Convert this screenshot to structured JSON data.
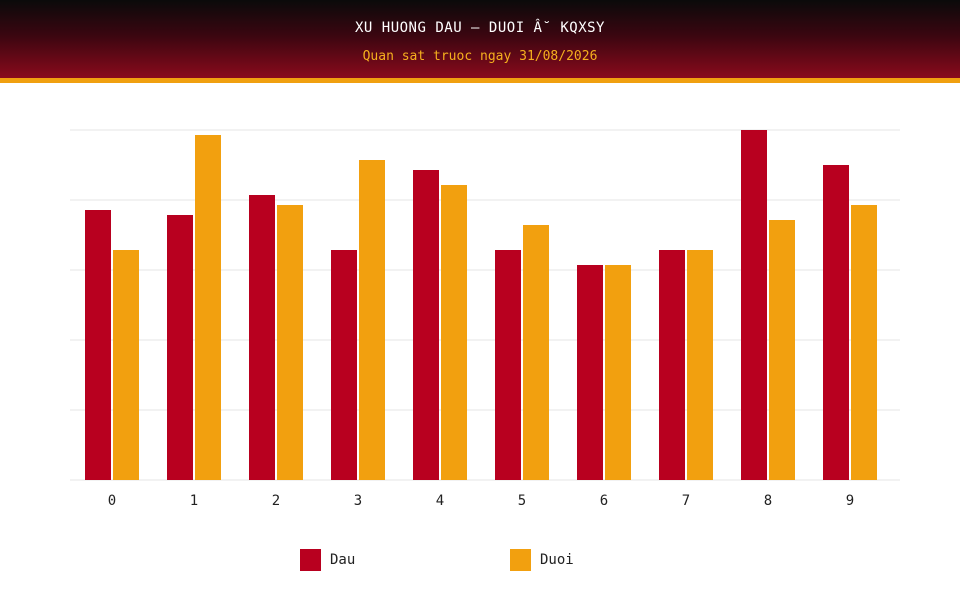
{
  "header": {
    "title": "XU HUONG DAU – DUOI Â˘ KQXSY",
    "subtitle": "Quan sat truoc ngay 31/08/2026"
  },
  "colors": {
    "dau": "#b8001f",
    "duoi": "#f2a00f",
    "grid": "#e6e6e6",
    "tick_text": "#222222"
  },
  "chart_data": {
    "type": "bar",
    "categories": [
      "0",
      "1",
      "2",
      "3",
      "4",
      "5",
      "6",
      "7",
      "8",
      "9"
    ],
    "series": [
      {
        "name": "Dau",
        "values": [
          27,
          26.5,
          28.5,
          23,
          31,
          23,
          21.5,
          23,
          35,
          31.5
        ]
      },
      {
        "name": "Duoi",
        "values": [
          23,
          34.5,
          27.5,
          32,
          29.5,
          25.5,
          21.5,
          23,
          26,
          27.5
        ]
      }
    ],
    "ylim": [
      0,
      35
    ],
    "grid": true,
    "gridlines": [
      0,
      7,
      14,
      21,
      28,
      35
    ],
    "legend": {
      "placement": "bottom",
      "items": [
        {
          "label": "Dau"
        },
        {
          "label": "Duoi"
        }
      ]
    }
  }
}
